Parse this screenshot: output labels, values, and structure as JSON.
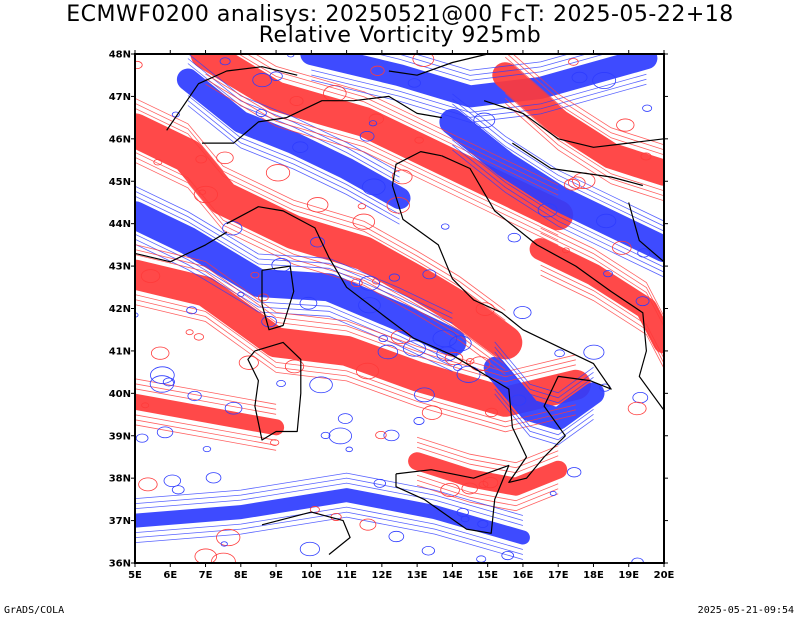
{
  "title": {
    "line1": "ECMWF0200 analisys: 20250521@00 FcT: 2025-05-22+18",
    "line2": "Relative Vorticity 925mb"
  },
  "map": {
    "lat_labels": [
      "48N",
      "47N",
      "46N",
      "45N",
      "44N",
      "43N",
      "42N",
      "41N",
      "40N",
      "39N",
      "38N",
      "37N",
      "36N"
    ],
    "lon_labels": [
      "5E",
      "6E",
      "7E",
      "8E",
      "9E",
      "10E",
      "11E",
      "12E",
      "13E",
      "14E",
      "15E",
      "16E",
      "17E",
      "18E",
      "19E",
      "20E"
    ],
    "lat_range": [
      36,
      48
    ],
    "lon_range": [
      5,
      20
    ],
    "colors": {
      "positive": "#ff3a3a",
      "negative": "#2e3cff",
      "coast": "#000000",
      "frame": "#000000"
    }
  },
  "footer": {
    "left": "GrADS/COLA",
    "right": "2025-05-21-09:54"
  }
}
